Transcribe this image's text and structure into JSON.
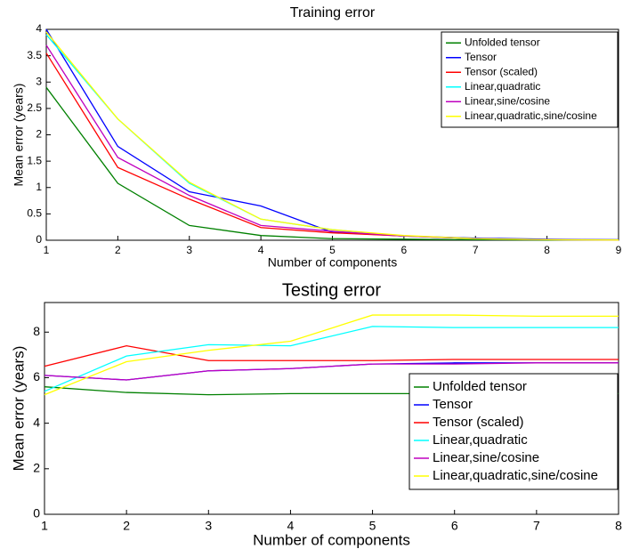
{
  "chart_data": [
    {
      "type": "line",
      "title": "Training error",
      "xlabel": "Number of components",
      "ylabel": "Mean error (years)",
      "x": [
        1,
        2,
        3,
        4,
        5,
        6,
        7,
        8,
        9
      ],
      "xlim": [
        1,
        9
      ],
      "xticks": [
        1,
        2,
        3,
        4,
        5,
        6,
        7,
        8,
        9
      ],
      "ylim": [
        0,
        4
      ],
      "yticks": [
        0,
        0.5,
        1,
        1.5,
        2,
        2.5,
        3,
        3.5,
        4
      ],
      "legend": "upper right",
      "series": [
        {
          "name": "Unfolded tensor",
          "color": "#008000",
          "values": [
            2.9,
            1.08,
            0.28,
            0.09,
            0.03,
            0.02,
            0.01,
            0.005,
            0.005
          ]
        },
        {
          "name": "Tensor",
          "color": "#0000ff",
          "values": [
            4.0,
            1.78,
            0.92,
            0.65,
            0.15,
            0.08,
            0.04,
            0.02,
            0.01
          ]
        },
        {
          "name": "Tensor (scaled)",
          "color": "#ff0000",
          "values": [
            3.55,
            1.38,
            0.78,
            0.24,
            0.14,
            0.08,
            0.03,
            0.01,
            0.005
          ]
        },
        {
          "name": "Linear,quadratic",
          "color": "#00ffff",
          "values": [
            3.9,
            2.3,
            1.08,
            0.4,
            0.2,
            0.08,
            0.03,
            0.01,
            0.005
          ]
        },
        {
          "name": "Linear,sine/cosine",
          "color": "#bf00bf",
          "values": [
            3.7,
            1.57,
            0.85,
            0.28,
            0.17,
            0.08,
            0.03,
            0.01,
            0.005
          ]
        },
        {
          "name": "Linear,quadratic,sine/cosine",
          "color": "#ffff00",
          "values": [
            3.95,
            2.3,
            1.1,
            0.4,
            0.2,
            0.09,
            0.03,
            0.01,
            0.005
          ]
        }
      ]
    },
    {
      "type": "line",
      "title": "Testing error",
      "xlabel": "Number of components",
      "ylabel": "Mean error (years)",
      "x": [
        1,
        2,
        3,
        4,
        5,
        6,
        7,
        8
      ],
      "xlim": [
        1,
        8
      ],
      "xticks": [
        1,
        2,
        3,
        4,
        5,
        6,
        7,
        8
      ],
      "ylim": [
        0,
        9.3
      ],
      "yticks": [
        0,
        2,
        4,
        6,
        8
      ],
      "legend": "lower right",
      "series": [
        {
          "name": "Unfolded tensor",
          "color": "#008000",
          "values": [
            5.6,
            5.35,
            5.25,
            5.3,
            5.3,
            5.3,
            5.3,
            5.3
          ]
        },
        {
          "name": "Tensor",
          "color": "#0000ff",
          "values": [
            6.1,
            5.9,
            6.3,
            6.4,
            6.6,
            6.65,
            6.65,
            6.65
          ]
        },
        {
          "name": "Tensor (scaled)",
          "color": "#ff0000",
          "values": [
            6.5,
            7.4,
            6.75,
            6.75,
            6.75,
            6.8,
            6.8,
            6.8
          ]
        },
        {
          "name": "Linear,quadratic",
          "color": "#00ffff",
          "values": [
            5.4,
            6.95,
            7.45,
            7.4,
            8.25,
            8.2,
            8.2,
            8.2
          ]
        },
        {
          "name": "Linear,sine/cosine",
          "color": "#bf00bf",
          "values": [
            6.1,
            5.9,
            6.3,
            6.4,
            6.6,
            6.6,
            6.65,
            6.65
          ]
        },
        {
          "name": "Linear,quadratic,sine/cosine",
          "color": "#ffff00",
          "values": [
            5.25,
            6.7,
            7.2,
            7.6,
            8.75,
            8.75,
            8.7,
            8.7
          ]
        }
      ]
    }
  ]
}
